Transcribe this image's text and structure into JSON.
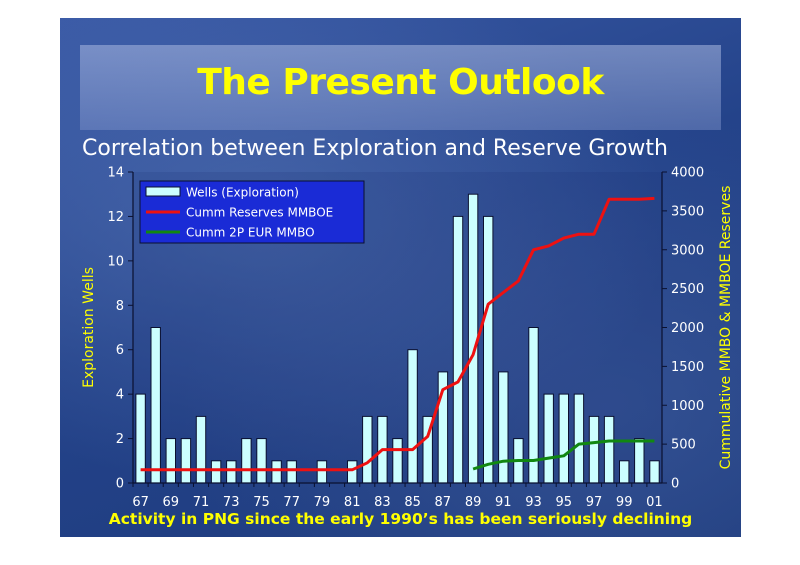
{
  "slide": {
    "title": "The Present Outlook",
    "footer": "Activity in PNG since the early 1990’s has been seriously declining"
  },
  "colors": {
    "background": "#24438a",
    "title_text": "#ffff00",
    "bar_fill": "#ccffff",
    "reserves_line": "#ee1111",
    "eur_line": "#118811",
    "legend_box": "#1a2bd6"
  },
  "chart_data": {
    "type": "bar",
    "title": "Correlation between Exploration and Reserve Growth",
    "ylabel": "Exploration Wells",
    "y2label": "Cummulative MMBO & MMBOE Reserves",
    "ylim": [
      0,
      14
    ],
    "y2lim": [
      0,
      4000
    ],
    "yticks": [
      "0",
      "2",
      "4",
      "6",
      "8",
      "10",
      "12",
      "14"
    ],
    "y2ticks": [
      "0",
      "500",
      "1000",
      "1500",
      "2000",
      "2500",
      "3000",
      "3500",
      "4000"
    ],
    "x_tick_labels": [
      "67",
      "69",
      "71",
      "73",
      "75",
      "77",
      "79",
      "81",
      "83",
      "85",
      "87",
      "89",
      "91",
      "93",
      "95",
      "97",
      "99",
      "01"
    ],
    "categories": [
      "67",
      "68",
      "69",
      "70",
      "71",
      "72",
      "73",
      "74",
      "75",
      "76",
      "77",
      "78",
      "79",
      "80",
      "81",
      "82",
      "83",
      "84",
      "85",
      "86",
      "87",
      "88",
      "89",
      "90",
      "91",
      "92",
      "93",
      "94",
      "95",
      "96",
      "97",
      "98",
      "99",
      "00",
      "01"
    ],
    "legend_placement": "top-left",
    "grid": false,
    "series": [
      {
        "name": "Wells (Exploration)",
        "kind": "bar",
        "axis": "left",
        "values": [
          4,
          7,
          2,
          2,
          3,
          1,
          1,
          2,
          2,
          1,
          1,
          0,
          1,
          0,
          1,
          3,
          3,
          2,
          6,
          3,
          5,
          12,
          13,
          12,
          5,
          2,
          7,
          4,
          4,
          4,
          3,
          3,
          1,
          2,
          1
        ]
      },
      {
        "name": "Cumm Reserves MMBOE",
        "kind": "line",
        "axis": "right",
        "values": [
          170,
          170,
          170,
          170,
          170,
          170,
          170,
          170,
          170,
          170,
          170,
          170,
          170,
          170,
          170,
          260,
          430,
          430,
          430,
          600,
          1200,
          1300,
          1650,
          2300,
          2450,
          2600,
          3000,
          3050,
          3150,
          3200,
          3200,
          3650,
          3650,
          3650,
          3660
        ]
      },
      {
        "name": "Cumm 2P EUR MMBO",
        "kind": "line",
        "axis": "right",
        "values": [
          null,
          null,
          null,
          null,
          null,
          null,
          null,
          null,
          null,
          null,
          null,
          null,
          null,
          null,
          null,
          null,
          null,
          null,
          null,
          null,
          null,
          null,
          180,
          240,
          280,
          290,
          290,
          320,
          350,
          500,
          520,
          540,
          540,
          540,
          540
        ]
      }
    ]
  }
}
